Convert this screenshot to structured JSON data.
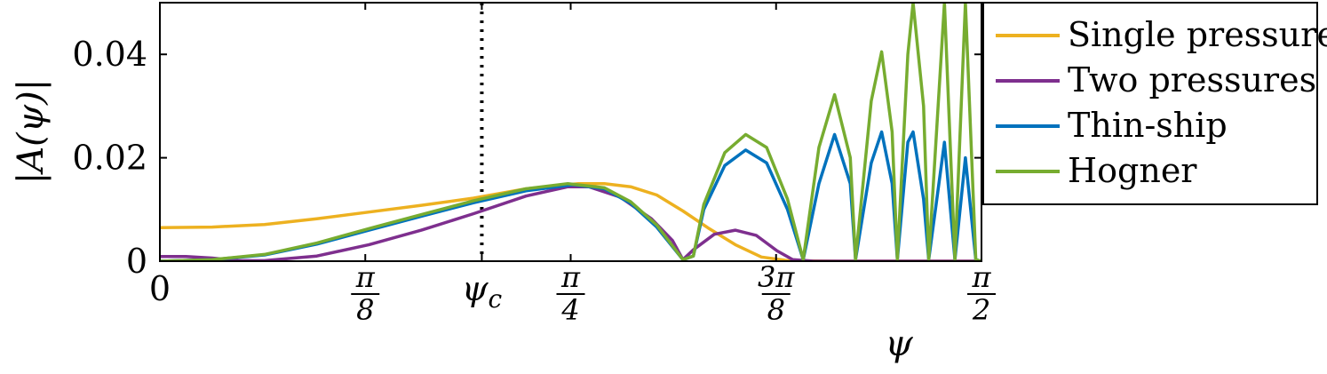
{
  "chart_data": {
    "type": "line",
    "xlabel": "ψ",
    "ylabel": "|A(ψ)|",
    "xlim": [
      0,
      1.5708
    ],
    "ylim": [
      0,
      0.05
    ],
    "x_ticks": [
      {
        "value": 0,
        "label": "0"
      },
      {
        "value": 0.3927,
        "num": "π",
        "den": "8"
      },
      {
        "value": 0.6155,
        "label": "ψc"
      },
      {
        "value": 0.7854,
        "num": "π",
        "den": "4"
      },
      {
        "value": 1.1781,
        "num": "3π",
        "den": "8"
      },
      {
        "value": 1.5708,
        "num": "π",
        "den": "2"
      }
    ],
    "y_ticks": [
      {
        "value": 0,
        "label": "0"
      },
      {
        "value": 0.02,
        "label": "0.02"
      },
      {
        "value": 0.04,
        "label": "0.04"
      }
    ],
    "vline": {
      "x": 0.6155,
      "style": "dotted"
    },
    "grid": false,
    "legend_position": "top-right, outside plot",
    "series": [
      {
        "name": "Single pressure",
        "color": "#EDB120",
        "points": [
          [
            0,
            0.0065
          ],
          [
            0.1,
            0.0066
          ],
          [
            0.2,
            0.0071
          ],
          [
            0.3,
            0.0082
          ],
          [
            0.4,
            0.0095
          ],
          [
            0.5,
            0.0108
          ],
          [
            0.6,
            0.0122
          ],
          [
            0.7,
            0.014
          ],
          [
            0.8,
            0.015
          ],
          [
            0.85,
            0.015
          ],
          [
            0.9,
            0.0144
          ],
          [
            0.95,
            0.0128
          ],
          [
            1.0,
            0.0097
          ],
          [
            1.05,
            0.0063
          ],
          [
            1.1,
            0.0032
          ],
          [
            1.15,
            0.0008
          ],
          [
            1.2,
            0.0001
          ],
          [
            1.3,
            0
          ],
          [
            1.5708,
            0
          ]
        ]
      },
      {
        "name": "Two pressures",
        "color": "#7E2F8E",
        "points": [
          [
            0,
            0.0009
          ],
          [
            0.05,
            0.0009
          ],
          [
            0.1,
            0.0006
          ],
          [
            0.15,
            0.0001
          ],
          [
            0.2,
            0.0001
          ],
          [
            0.3,
            0.001
          ],
          [
            0.4,
            0.0032
          ],
          [
            0.5,
            0.006
          ],
          [
            0.6,
            0.0092
          ],
          [
            0.7,
            0.0126
          ],
          [
            0.78,
            0.0144
          ],
          [
            0.82,
            0.0144
          ],
          [
            0.88,
            0.0124
          ],
          [
            0.94,
            0.0082
          ],
          [
            0.98,
            0.004
          ],
          [
            1.0,
            0.0003
          ],
          [
            1.02,
            0.0022
          ],
          [
            1.06,
            0.0052
          ],
          [
            1.1,
            0.006
          ],
          [
            1.14,
            0.005
          ],
          [
            1.18,
            0.002
          ],
          [
            1.21,
            0.0003
          ],
          [
            1.25,
            0
          ],
          [
            1.5708,
            0
          ]
        ]
      },
      {
        "name": "Thin-ship",
        "color": "#0072BD",
        "points": [
          [
            0,
            0
          ],
          [
            0.1,
            0.0003
          ],
          [
            0.2,
            0.0012
          ],
          [
            0.3,
            0.0033
          ],
          [
            0.4,
            0.006
          ],
          [
            0.5,
            0.0087
          ],
          [
            0.6,
            0.0113
          ],
          [
            0.7,
            0.0136
          ],
          [
            0.79,
            0.0148
          ],
          [
            0.85,
            0.014
          ],
          [
            0.9,
            0.0112
          ],
          [
            0.95,
            0.0066
          ],
          [
            1.0,
            0.0003
          ],
          [
            1.02,
            0.001
          ],
          [
            1.04,
            0.01
          ],
          [
            1.08,
            0.0185
          ],
          [
            1.12,
            0.0215
          ],
          [
            1.16,
            0.019
          ],
          [
            1.2,
            0.01
          ],
          [
            1.23,
            0.0003
          ],
          [
            1.26,
            0.015
          ],
          [
            1.29,
            0.0245
          ],
          [
            1.32,
            0.015
          ],
          [
            1.33,
            0.0003
          ],
          [
            1.36,
            0.019
          ],
          [
            1.38,
            0.025
          ],
          [
            1.4,
            0.015
          ],
          [
            1.41,
            0.0003
          ],
          [
            1.43,
            0.023
          ],
          [
            1.44,
            0.025
          ],
          [
            1.46,
            0.012
          ],
          [
            1.47,
            0.0003
          ],
          [
            1.5,
            0.023
          ],
          [
            1.52,
            0.0003
          ],
          [
            1.54,
            0.02
          ],
          [
            1.56,
            0.0003
          ],
          [
            1.5708,
            0
          ]
        ]
      },
      {
        "name": "Hogner",
        "color": "#77AC30",
        "points": [
          [
            0,
            0
          ],
          [
            0.1,
            0.0003
          ],
          [
            0.2,
            0.0013
          ],
          [
            0.3,
            0.0035
          ],
          [
            0.4,
            0.0063
          ],
          [
            0.5,
            0.009
          ],
          [
            0.6,
            0.0117
          ],
          [
            0.7,
            0.014
          ],
          [
            0.78,
            0.015
          ],
          [
            0.85,
            0.0142
          ],
          [
            0.9,
            0.0115
          ],
          [
            0.95,
            0.007
          ],
          [
            1.0,
            0.0003
          ],
          [
            1.02,
            0.001
          ],
          [
            1.04,
            0.011
          ],
          [
            1.08,
            0.021
          ],
          [
            1.12,
            0.0245
          ],
          [
            1.16,
            0.022
          ],
          [
            1.2,
            0.012
          ],
          [
            1.23,
            0.0003
          ],
          [
            1.26,
            0.022
          ],
          [
            1.29,
            0.0322
          ],
          [
            1.32,
            0.02
          ],
          [
            1.33,
            0.0003
          ],
          [
            1.36,
            0.031
          ],
          [
            1.38,
            0.0405
          ],
          [
            1.4,
            0.025
          ],
          [
            1.41,
            0.0003
          ],
          [
            1.43,
            0.04
          ],
          [
            1.44,
            0.05
          ],
          [
            1.46,
            0.03
          ],
          [
            1.47,
            0.0003
          ],
          [
            1.5,
            0.05
          ],
          [
            1.52,
            0.0003
          ],
          [
            1.54,
            0.05
          ],
          [
            1.56,
            0.0003
          ],
          [
            1.5708,
            0
          ]
        ]
      }
    ]
  }
}
